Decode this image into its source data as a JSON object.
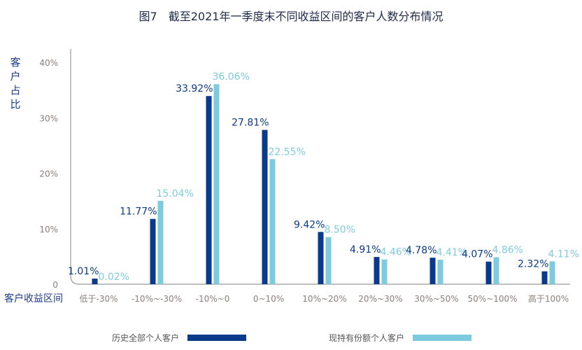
{
  "chart_data": {
    "type": "bar",
    "title": "图7　截至2021年一季度末不同收益区间的客户人数分布情况",
    "xlabel": "客户收益区间",
    "ylabel": "客户占比",
    "ylim": [
      0,
      40
    ],
    "yticks": [
      "0",
      "10%",
      "20%",
      "30%",
      "40%"
    ],
    "grid": false,
    "legend_position": "bottom",
    "categories": [
      "低于-30%",
      "-10%~-30%",
      "-10%~0",
      "0~10%",
      "10%~20%",
      "20%~30%",
      "30%~50%",
      "50%~100%",
      "高于100%"
    ],
    "series": [
      {
        "name": "历史全部个人客户",
        "color": "#0b3a8a",
        "values": [
          1.01,
          11.77,
          33.92,
          27.81,
          9.42,
          4.91,
          4.78,
          4.07,
          2.32
        ],
        "labels": [
          "1.01%",
          "11.77%",
          "33.92%",
          "27.81%",
          "9.42%",
          "4.91%",
          "4.78%",
          "4.07%",
          "2.32%"
        ]
      },
      {
        "name": "现持有份额个人客户",
        "color": "#7ecbe0",
        "values": [
          0.02,
          15.04,
          36.06,
          22.55,
          8.5,
          4.46,
          4.41,
          4.86,
          4.11
        ],
        "labels": [
          "0.02%",
          "15.04%",
          "36.06%",
          "22.55%",
          "8.50%",
          "4.46%",
          "4.41%",
          "4.86%",
          "4.11%"
        ]
      }
    ]
  }
}
